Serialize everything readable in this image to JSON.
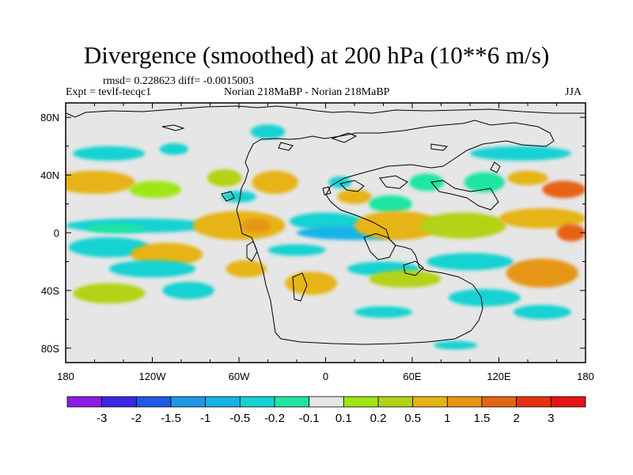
{
  "chart_data": {
    "type": "heatmap",
    "title": "Divergence (smoothed) at 200 hPa (10**6 m/s)",
    "rmsd_text": "rmsd= 0.228623 diff= -0.0015003",
    "expt_text": "Expt = tevlf-tecqc1",
    "case_text": "Norian 218MaBP - Norian 218MaBP",
    "season": "JJA",
    "xlim": [
      -180,
      180
    ],
    "ylim": [
      -90,
      90
    ],
    "x_ticks": [
      {
        "value": -180,
        "label": "180"
      },
      {
        "value": -120,
        "label": "120W"
      },
      {
        "value": -60,
        "label": "60W"
      },
      {
        "value": 0,
        "label": "0"
      },
      {
        "value": 60,
        "label": "60E"
      },
      {
        "value": 120,
        "label": "120E"
      },
      {
        "value": 180,
        "label": "180"
      }
    ],
    "y_ticks": [
      {
        "value": 80,
        "label": "80N"
      },
      {
        "value": 40,
        "label": "40N"
      },
      {
        "value": 0,
        "label": "0"
      },
      {
        "value": -40,
        "label": "40S"
      },
      {
        "value": -80,
        "label": "80S"
      }
    ],
    "colorbar": {
      "colors": [
        "#8a1ee6",
        "#3c28e6",
        "#1e5ae6",
        "#1e96e6",
        "#14b4e6",
        "#14d2d2",
        "#1ee6a0",
        "#e6e6e6",
        "#a0e614",
        "#b4d214",
        "#e6b414",
        "#e69614",
        "#e66414",
        "#e63214",
        "#e61414"
      ],
      "labels": [
        "-3",
        "-2",
        "-1.5",
        "-1",
        "-0.5",
        "-0.2",
        "-0.1",
        "0.1",
        "0.2",
        "0.5",
        "1",
        "1.5",
        "2",
        "3"
      ]
    },
    "anomaly_regions": [
      {
        "lon": -160,
        "lat": 35,
        "rlon": 28,
        "rlat": 8,
        "level": 10
      },
      {
        "lon": -118,
        "lat": 30,
        "rlon": 18,
        "rlat": 6,
        "level": 8
      },
      {
        "lon": -150,
        "lat": 55,
        "rlon": 25,
        "rlat": 5,
        "level": 5
      },
      {
        "lon": -105,
        "lat": 58,
        "rlon": 10,
        "rlat": 4,
        "level": 5
      },
      {
        "lon": -40,
        "lat": 70,
        "rlon": 12,
        "rlat": 5,
        "level": 5
      },
      {
        "lon": -70,
        "lat": 38,
        "rlon": 12,
        "rlat": 6,
        "level": 9
      },
      {
        "lon": -35,
        "lat": 35,
        "rlon": 16,
        "rlat": 8,
        "level": 10
      },
      {
        "lon": -60,
        "lat": 25,
        "rlon": 12,
        "rlat": 4,
        "level": 5
      },
      {
        "lon": -130,
        "lat": 5,
        "rlon": 50,
        "rlat": 5,
        "level": 5
      },
      {
        "lon": -145,
        "lat": 3,
        "rlon": 20,
        "rlat": 3,
        "level": 6
      },
      {
        "lon": -60,
        "lat": 5,
        "rlon": 32,
        "rlat": 10,
        "level": 10
      },
      {
        "lon": -48,
        "lat": 5,
        "rlon": 10,
        "rlat": 5,
        "level": 11
      },
      {
        "lon": 0,
        "lat": 8,
        "rlon": 25,
        "rlat": 6,
        "level": 5
      },
      {
        "lon": 20,
        "lat": 0,
        "rlon": 40,
        "rlat": 5,
        "level": 4
      },
      {
        "lon": 10,
        "lat": 35,
        "rlon": 8,
        "rlat": 4,
        "level": 5
      },
      {
        "lon": 20,
        "lat": 25,
        "rlon": 12,
        "rlat": 5,
        "level": 10
      },
      {
        "lon": 45,
        "lat": 20,
        "rlon": 15,
        "rlat": 6,
        "level": 6
      },
      {
        "lon": 70,
        "lat": 35,
        "rlon": 12,
        "rlat": 6,
        "level": 6
      },
      {
        "lon": 110,
        "lat": 35,
        "rlon": 14,
        "rlat": 7,
        "level": 6
      },
      {
        "lon": 140,
        "lat": 38,
        "rlon": 14,
        "rlat": 5,
        "level": 10
      },
      {
        "lon": 165,
        "lat": 30,
        "rlon": 15,
        "rlat": 6,
        "level": 12
      },
      {
        "lon": 50,
        "lat": 5,
        "rlon": 30,
        "rlat": 10,
        "level": 10
      },
      {
        "lon": 95,
        "lat": 5,
        "rlon": 30,
        "rlat": 9,
        "level": 9
      },
      {
        "lon": 150,
        "lat": 10,
        "rlon": 30,
        "rlat": 7,
        "level": 10
      },
      {
        "lon": 170,
        "lat": 0,
        "rlon": 10,
        "rlat": 6,
        "level": 12
      },
      {
        "lon": 135,
        "lat": 55,
        "rlon": 35,
        "rlat": 5,
        "level": 5
      },
      {
        "lon": -150,
        "lat": -10,
        "rlon": 28,
        "rlat": 7,
        "level": 5
      },
      {
        "lon": -110,
        "lat": -15,
        "rlon": 25,
        "rlat": 8,
        "level": 10
      },
      {
        "lon": -120,
        "lat": -25,
        "rlon": 30,
        "rlat": 6,
        "level": 5
      },
      {
        "lon": -150,
        "lat": -42,
        "rlon": 25,
        "rlat": 7,
        "level": 9
      },
      {
        "lon": -95,
        "lat": -40,
        "rlon": 18,
        "rlat": 6,
        "level": 5
      },
      {
        "lon": -55,
        "lat": -25,
        "rlon": 14,
        "rlat": 6,
        "level": 10
      },
      {
        "lon": -20,
        "lat": -12,
        "rlon": 20,
        "rlat": 4,
        "level": 5
      },
      {
        "lon": -10,
        "lat": -35,
        "rlon": 18,
        "rlat": 8,
        "level": 10
      },
      {
        "lon": 40,
        "lat": -25,
        "rlon": 25,
        "rlat": 5,
        "level": 5
      },
      {
        "lon": 55,
        "lat": -32,
        "rlon": 25,
        "rlat": 6,
        "level": 9
      },
      {
        "lon": 100,
        "lat": -20,
        "rlon": 30,
        "rlat": 6,
        "level": 5
      },
      {
        "lon": 150,
        "lat": -28,
        "rlon": 25,
        "rlat": 10,
        "level": 11
      },
      {
        "lon": 110,
        "lat": -45,
        "rlon": 25,
        "rlat": 6,
        "level": 5
      },
      {
        "lon": 150,
        "lat": -55,
        "rlon": 20,
        "rlat": 5,
        "level": 5
      },
      {
        "lon": 40,
        "lat": -55,
        "rlon": 20,
        "rlat": 4,
        "level": 5
      },
      {
        "lon": 90,
        "lat": -78,
        "rlon": 15,
        "rlat": 3,
        "level": 5
      }
    ]
  }
}
